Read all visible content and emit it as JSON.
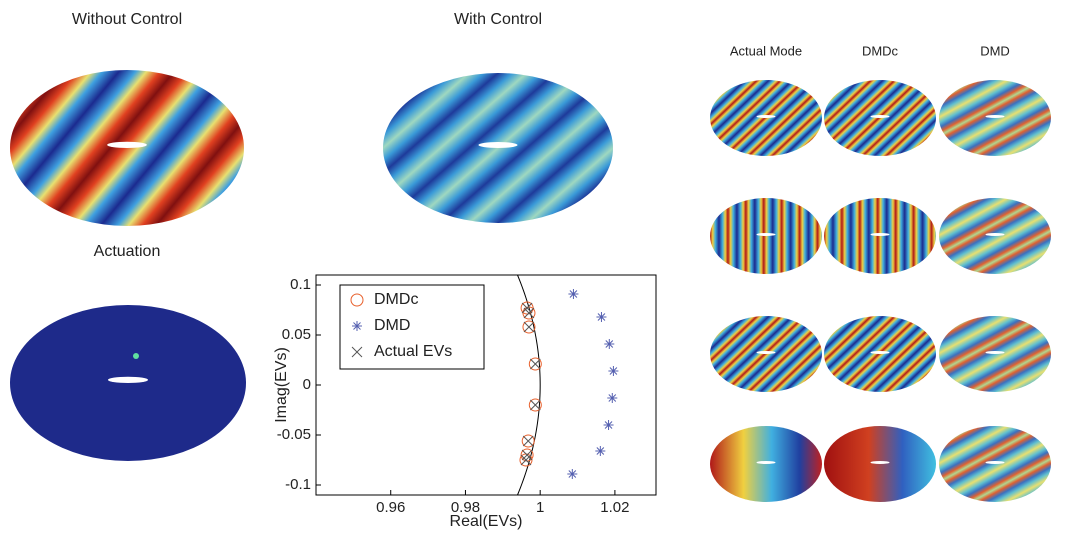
{
  "panels": {
    "without_control": "Without Control",
    "with_control": "With Control",
    "actuation": "Actuation",
    "columns": [
      "Actual Mode",
      "DMDc",
      "DMD"
    ]
  },
  "chart_data": {
    "type": "scatter",
    "xlabel": "Real(EVs)",
    "ylabel": "Imag(EVs)",
    "xlim": [
      0.94,
      1.031
    ],
    "ylim": [
      -0.11,
      0.11
    ],
    "xticks": [
      0.96,
      0.98,
      1,
      1.02
    ],
    "yticks": [
      -0.1,
      -0.05,
      0,
      0.05,
      0.1
    ],
    "legend": "upper left",
    "series": [
      {
        "name": "DMDc",
        "color": "#e8602c",
        "marker": "circle",
        "x": [
          0.9965,
          0.997,
          0.997,
          0.9987,
          0.9987,
          0.9968,
          0.9965,
          0.9962
        ],
        "values": [
          0.077,
          0.072,
          0.058,
          0.021,
          -0.02,
          -0.056,
          -0.07,
          -0.075
        ]
      },
      {
        "name": "DMD",
        "color": "#5560b0",
        "marker": "star",
        "x": [
          1.0089,
          1.0164,
          1.0185,
          1.0196,
          1.0193,
          1.0183,
          1.0161,
          1.0086
        ],
        "values": [
          0.091,
          0.068,
          0.041,
          0.014,
          -0.013,
          -0.04,
          -0.066,
          -0.089
        ]
      },
      {
        "name": "Actual EVs",
        "color": "#555555",
        "marker": "x",
        "x": [
          0.9965,
          0.997,
          0.997,
          0.9987,
          0.9987,
          0.9968,
          0.9965,
          0.9962
        ],
        "values": [
          0.077,
          0.072,
          0.058,
          0.021,
          -0.02,
          -0.056,
          -0.07,
          -0.075
        ]
      }
    ]
  }
}
